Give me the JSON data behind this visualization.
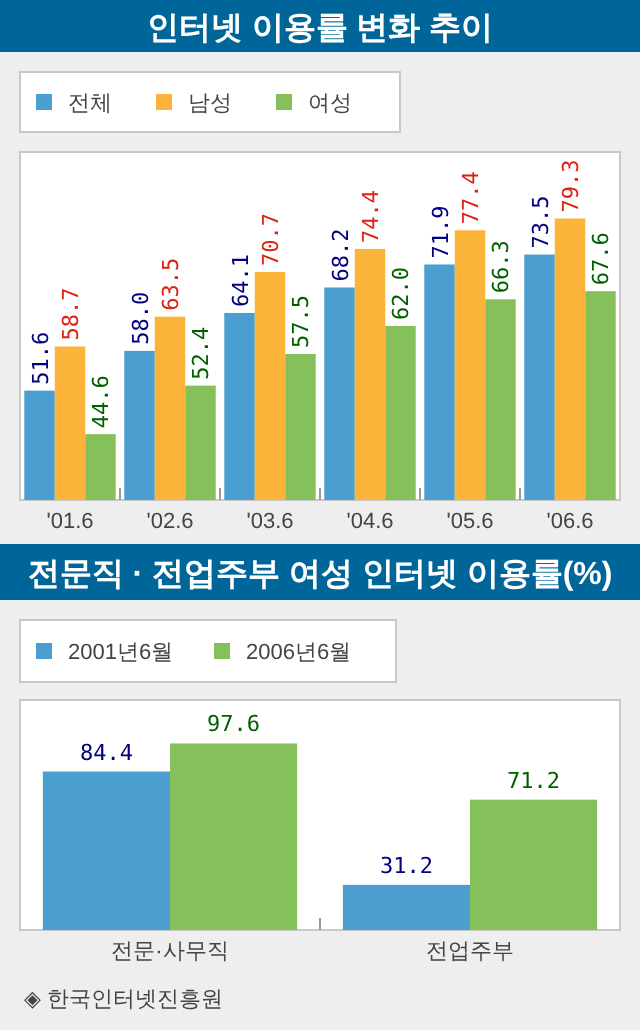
{
  "chart_data": [
    {
      "type": "bar",
      "title": "인터넷 이용률 변화 추이",
      "categories": [
        "'01.6",
        "'02.6",
        "'03.6",
        "'04.6",
        "'05.6",
        "'06.6"
      ],
      "series": [
        {
          "name": "전체",
          "color": "#4a9fd0",
          "values": [
            51.6,
            58.0,
            64.1,
            68.2,
            71.9,
            73.5
          ],
          "value_labels": [
            "51.6",
            "58.0",
            "64.1",
            "68.2",
            "71.9",
            "73.5"
          ]
        },
        {
          "name": "남성",
          "color": "#fbb33a",
          "values": [
            58.7,
            63.5,
            70.7,
            74.4,
            77.4,
            79.3
          ],
          "value_labels": [
            "58.7",
            "63.5",
            "70.7",
            "74.4",
            "77.4",
            "79.3"
          ]
        },
        {
          "name": "여성",
          "color": "#86c05a",
          "values": [
            44.6,
            52.4,
            57.5,
            62.0,
            66.3,
            67.6
          ],
          "value_labels": [
            "44.6",
            "52.4",
            "57.5",
            "62.0",
            "66.3",
            "67.6"
          ]
        }
      ],
      "ylim": [
        34,
        90
      ],
      "legend": "top",
      "tick_labels": "x"
    },
    {
      "type": "bar",
      "title": "전문직 · 전업주부 여성 인터넷 이용률(%)",
      "categories": [
        "전문·사무직",
        "전업주부"
      ],
      "series": [
        {
          "name": "2001년6월",
          "color": "#4a9fd0",
          "values": [
            84.4,
            31.2
          ]
        },
        {
          "name": "2006년6월",
          "color": "#86c05a",
          "values": [
            97.6,
            71.2
          ]
        }
      ],
      "ylim": [
        10,
        118
      ],
      "data_labels": true,
      "legend": "top",
      "tick_labels": "x",
      "annotations": [
        "◈ 한국인터넷진흥원"
      ]
    }
  ]
}
